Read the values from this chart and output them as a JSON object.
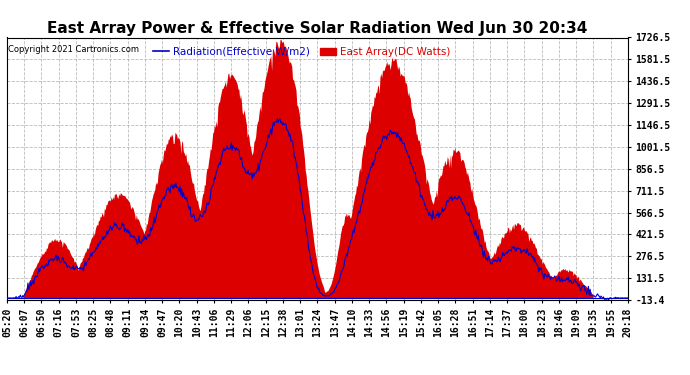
{
  "title": "East Array Power & Effective Solar Radiation Wed Jun 30 20:34",
  "copyright": "Copyright 2021 Cartronics.com",
  "legend_radiation": "Radiation(Effective W/m2)",
  "legend_east": "East Array(DC Watts)",
  "yticks": [
    -13.4,
    131.5,
    276.5,
    421.5,
    566.5,
    711.5,
    856.5,
    1001.5,
    1146.5,
    1291.5,
    1436.5,
    1581.5,
    1726.5
  ],
  "ymin": -13.4,
  "ymax": 1726.5,
  "background_color": "#ffffff",
  "plot_background": "#ffffff",
  "radiation_color": "#dd0000",
  "east_array_color": "#0000cc",
  "grid_color": "#aaaaaa",
  "title_fontsize": 11,
  "tick_fontsize": 7,
  "xtick_labels": [
    "05:20",
    "06:07",
    "06:50",
    "07:16",
    "07:53",
    "08:25",
    "08:48",
    "09:11",
    "09:34",
    "09:47",
    "10:20",
    "10:43",
    "11:06",
    "11:29",
    "12:06",
    "12:15",
    "12:38",
    "13:01",
    "13:24",
    "13:47",
    "14:10",
    "14:33",
    "14:56",
    "15:19",
    "15:42",
    "16:05",
    "16:28",
    "16:51",
    "17:14",
    "17:37",
    "18:00",
    "18:23",
    "18:46",
    "19:09",
    "19:35",
    "19:55",
    "20:18"
  ],
  "n_points": 740
}
